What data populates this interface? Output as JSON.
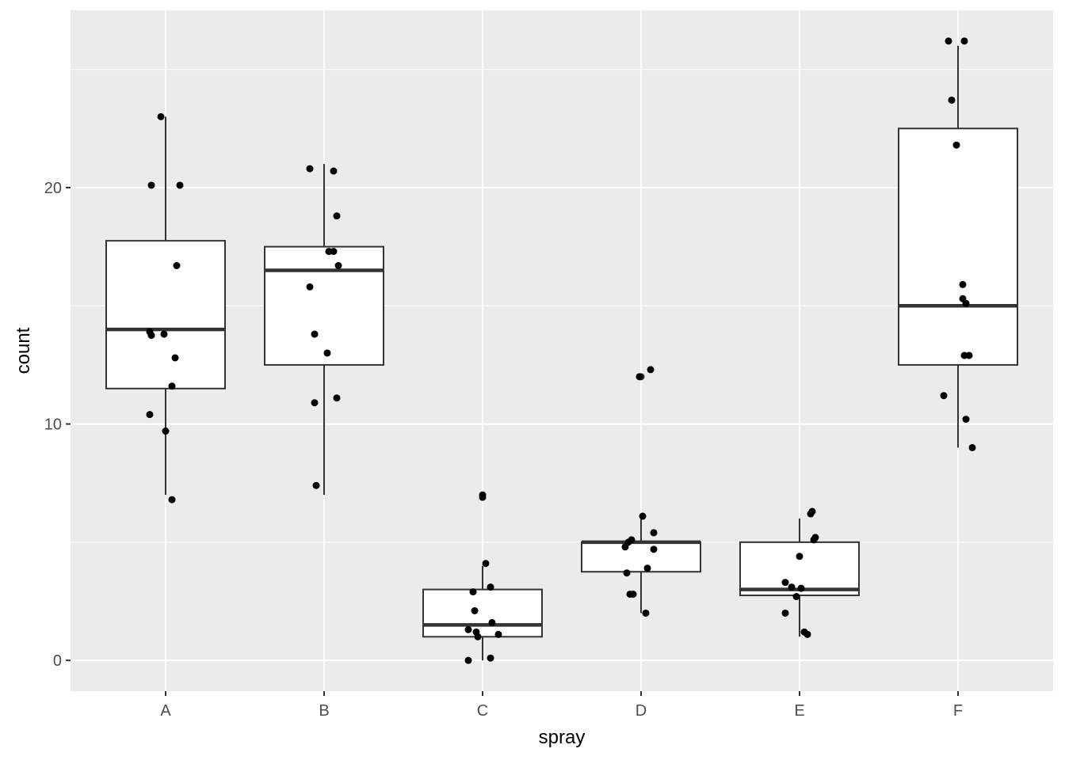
{
  "chart_data": {
    "type": "boxplot",
    "xlabel": "spray",
    "ylabel": "count",
    "categories": [
      "A",
      "B",
      "C",
      "D",
      "E",
      "F"
    ],
    "ylim": [
      -1.3,
      27.5
    ],
    "yticks": [
      0,
      10,
      20
    ],
    "y_minor_ticks": [
      5,
      15,
      25
    ],
    "grid": true,
    "colors": {
      "panel": "#ebebeb",
      "grid": "#ffffff",
      "box_fill": "#ffffff",
      "box_line": "#333333",
      "point": "#000000",
      "tick_label": "#4d4d4d"
    },
    "boxes": [
      {
        "category": "A",
        "whisker_low": 7,
        "q1": 11.5,
        "median": 14,
        "q3": 17.75,
        "whisker_high": 23
      },
      {
        "category": "B",
        "whisker_low": 7,
        "q1": 12.5,
        "median": 16.5,
        "q3": 17.5,
        "whisker_high": 21
      },
      {
        "category": "C",
        "whisker_low": 0,
        "q1": 1,
        "median": 1.5,
        "q3": 3,
        "whisker_high": 4
      },
      {
        "category": "D",
        "whisker_low": 2,
        "q1": 3.75,
        "median": 5,
        "q3": 5,
        "whisker_high": 6,
        "outliers": [
          12
        ]
      },
      {
        "category": "E",
        "whisker_low": 1,
        "q1": 2.75,
        "median": 3,
        "q3": 5,
        "whisker_high": 6
      },
      {
        "category": "F",
        "whisker_low": 9,
        "q1": 12.5,
        "median": 15,
        "q3": 22.5,
        "whisker_high": 26
      }
    ],
    "points": [
      {
        "category": "A",
        "jitter": -0.03,
        "y": 23
      },
      {
        "category": "A",
        "jitter": -0.09,
        "y": 20.1
      },
      {
        "category": "A",
        "jitter": 0.09,
        "y": 20.1
      },
      {
        "category": "A",
        "jitter": 0.07,
        "y": 16.7
      },
      {
        "category": "A",
        "jitter": -0.1,
        "y": 13.9
      },
      {
        "category": "A",
        "jitter": -0.09,
        "y": 13.75
      },
      {
        "category": "A",
        "jitter": -0.01,
        "y": 13.8
      },
      {
        "category": "A",
        "jitter": 0.06,
        "y": 12.8
      },
      {
        "category": "A",
        "jitter": 0.04,
        "y": 11.6
      },
      {
        "category": "A",
        "jitter": -0.1,
        "y": 10.4
      },
      {
        "category": "A",
        "jitter": 0.0,
        "y": 9.7
      },
      {
        "category": "A",
        "jitter": 0.04,
        "y": 6.8
      },
      {
        "category": "B",
        "jitter": -0.09,
        "y": 20.8
      },
      {
        "category": "B",
        "jitter": 0.06,
        "y": 20.7
      },
      {
        "category": "B",
        "jitter": 0.08,
        "y": 18.8
      },
      {
        "category": "B",
        "jitter": 0.03,
        "y": 17.3
      },
      {
        "category": "B",
        "jitter": 0.06,
        "y": 17.3
      },
      {
        "category": "B",
        "jitter": 0.09,
        "y": 16.7
      },
      {
        "category": "B",
        "jitter": -0.09,
        "y": 15.8
      },
      {
        "category": "B",
        "jitter": -0.06,
        "y": 13.8
      },
      {
        "category": "B",
        "jitter": 0.02,
        "y": 13
      },
      {
        "category": "B",
        "jitter": 0.08,
        "y": 11.1
      },
      {
        "category": "B",
        "jitter": -0.06,
        "y": 10.9
      },
      {
        "category": "B",
        "jitter": -0.05,
        "y": 7.4
      },
      {
        "category": "C",
        "jitter": 0.0,
        "y": 7
      },
      {
        "category": "C",
        "jitter": 0.0,
        "y": 6.9
      },
      {
        "category": "C",
        "jitter": 0.02,
        "y": 4.1
      },
      {
        "category": "C",
        "jitter": 0.05,
        "y": 3.1
      },
      {
        "category": "C",
        "jitter": -0.06,
        "y": 2.9
      },
      {
        "category": "C",
        "jitter": -0.05,
        "y": 2.1
      },
      {
        "category": "C",
        "jitter": 0.06,
        "y": 1.6
      },
      {
        "category": "C",
        "jitter": -0.09,
        "y": 1.3
      },
      {
        "category": "C",
        "jitter": -0.04,
        "y": 1.2
      },
      {
        "category": "C",
        "jitter": -0.03,
        "y": 1
      },
      {
        "category": "C",
        "jitter": 0.1,
        "y": 1.1
      },
      {
        "category": "C",
        "jitter": 0.05,
        "y": 0.1
      },
      {
        "category": "C",
        "jitter": -0.09,
        "y": 0
      },
      {
        "category": "D",
        "jitter": 0.06,
        "y": 12.3
      },
      {
        "category": "D",
        "jitter": -0.01,
        "y": 12
      },
      {
        "category": "D",
        "jitter": 0.01,
        "y": 6.1
      },
      {
        "category": "D",
        "jitter": 0.08,
        "y": 5.4
      },
      {
        "category": "D",
        "jitter": -0.06,
        "y": 5.1
      },
      {
        "category": "D",
        "jitter": -0.08,
        "y": 5
      },
      {
        "category": "D",
        "jitter": -0.1,
        "y": 4.8
      },
      {
        "category": "D",
        "jitter": 0.08,
        "y": 4.7
      },
      {
        "category": "D",
        "jitter": 0.04,
        "y": 3.9
      },
      {
        "category": "D",
        "jitter": -0.09,
        "y": 3.7
      },
      {
        "category": "D",
        "jitter": -0.07,
        "y": 2.8
      },
      {
        "category": "D",
        "jitter": -0.05,
        "y": 2.8
      },
      {
        "category": "D",
        "jitter": 0.03,
        "y": 2
      },
      {
        "category": "E",
        "jitter": 0.08,
        "y": 6.3
      },
      {
        "category": "E",
        "jitter": 0.07,
        "y": 6.2
      },
      {
        "category": "E",
        "jitter": 0.1,
        "y": 5.2
      },
      {
        "category": "E",
        "jitter": 0.09,
        "y": 5.1
      },
      {
        "category": "E",
        "jitter": 0.0,
        "y": 4.4
      },
      {
        "category": "E",
        "jitter": -0.09,
        "y": 3.3
      },
      {
        "category": "E",
        "jitter": -0.05,
        "y": 3.1
      },
      {
        "category": "E",
        "jitter": 0.01,
        "y": 3.05
      },
      {
        "category": "E",
        "jitter": -0.02,
        "y": 2.7
      },
      {
        "category": "E",
        "jitter": -0.09,
        "y": 2
      },
      {
        "category": "E",
        "jitter": 0.03,
        "y": 1.2
      },
      {
        "category": "E",
        "jitter": 0.05,
        "y": 1.1
      },
      {
        "category": "F",
        "jitter": -0.06,
        "y": 26.2
      },
      {
        "category": "F",
        "jitter": 0.04,
        "y": 26.2
      },
      {
        "category": "F",
        "jitter": -0.04,
        "y": 23.7
      },
      {
        "category": "F",
        "jitter": -0.01,
        "y": 21.8
      },
      {
        "category": "F",
        "jitter": 0.03,
        "y": 15.9
      },
      {
        "category": "F",
        "jitter": 0.03,
        "y": 15.3
      },
      {
        "category": "F",
        "jitter": 0.05,
        "y": 15.1
      },
      {
        "category": "F",
        "jitter": 0.04,
        "y": 12.9
      },
      {
        "category": "F",
        "jitter": 0.07,
        "y": 12.9
      },
      {
        "category": "F",
        "jitter": -0.09,
        "y": 11.2
      },
      {
        "category": "F",
        "jitter": 0.05,
        "y": 10.2
      },
      {
        "category": "F",
        "jitter": 0.09,
        "y": 9
      }
    ]
  }
}
